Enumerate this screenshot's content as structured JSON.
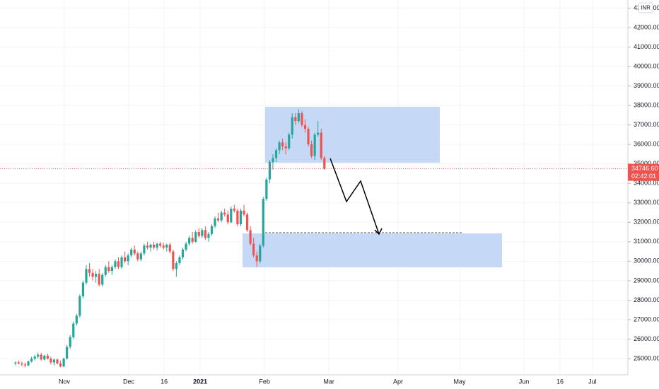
{
  "chart_data": {
    "type": "candlestick",
    "currency": "INR",
    "last_price_label": "34746.60",
    "countdown": "02:42:01",
    "up_color": "#26a69a",
    "down_color": "#ef5350",
    "grid": true,
    "xlim": [
      -4.8,
      190.3
    ],
    "ylim": [
      24165,
      43416
    ],
    "xticks": [
      {
        "value": 15.2,
        "label": "Nov"
      },
      {
        "value": 35.2,
        "label": "Dec"
      },
      {
        "value": 46.2,
        "label": "16"
      },
      {
        "value": 57.4,
        "label": "2021"
      },
      {
        "value": 77.4,
        "label": "Feb"
      },
      {
        "value": 97.4,
        "label": "Mar"
      },
      {
        "value": 118.9,
        "label": "Apr"
      },
      {
        "value": 138,
        "label": "May"
      },
      {
        "value": 158,
        "label": "Jun"
      },
      {
        "value": 169.2,
        "label": "16"
      },
      {
        "value": 179.3,
        "label": "Jul"
      }
    ],
    "yticks": [
      {
        "value": 25000,
        "label": "25000.00"
      },
      {
        "value": 26000,
        "label": "26000.00"
      },
      {
        "value": 27000,
        "label": "27000.00"
      },
      {
        "value": 28000,
        "label": "28000.00"
      },
      {
        "value": 29000,
        "label": "29000.00"
      },
      {
        "value": 30000,
        "label": "30000.00"
      },
      {
        "value": 31000,
        "label": "31000.00"
      },
      {
        "value": 32000,
        "label": "32000.00"
      },
      {
        "value": 33000,
        "label": "33000.00"
      },
      {
        "value": 34000,
        "label": "34000.00"
      },
      {
        "value": 35000,
        "label": "35000.00"
      },
      {
        "value": 36000,
        "label": "36000.00"
      },
      {
        "value": 37000,
        "label": "37000.00"
      },
      {
        "value": 38000,
        "label": "38000.00"
      },
      {
        "value": 39000,
        "label": "39000.00"
      },
      {
        "value": 40000,
        "label": "40000.00"
      },
      {
        "value": 41000,
        "label": "41000.00"
      },
      {
        "value": 42000,
        "label": "42000.00"
      },
      {
        "value": 43000,
        "label": "43000.00"
      }
    ],
    "ohlc": [
      [
        24750,
        24850,
        24650,
        24800
      ],
      [
        24800,
        24900,
        24700,
        24750
      ],
      [
        24750,
        24850,
        24600,
        24700
      ],
      [
        24700,
        24800,
        24550,
        24650
      ],
      [
        24650,
        24900,
        24600,
        24850
      ],
      [
        24850,
        25100,
        24800,
        25000
      ],
      [
        25000,
        25200,
        24900,
        25100
      ],
      [
        25100,
        25300,
        25000,
        25200
      ],
      [
        25200,
        25300,
        24900,
        24950
      ],
      [
        24950,
        25200,
        24900,
        25150
      ],
      [
        25150,
        25250,
        24950,
        25000
      ],
      [
        25000,
        25100,
        24700,
        24800
      ],
      [
        24800,
        25000,
        24650,
        24950
      ],
      [
        24950,
        25000,
        24700,
        24750
      ],
      [
        24750,
        24900,
        24550,
        24600
      ],
      [
        24600,
        25050,
        24550,
        25000
      ],
      [
        25000,
        25700,
        24950,
        25600
      ],
      [
        25600,
        26200,
        25500,
        26100
      ],
      [
        26100,
        26900,
        26000,
        26800
      ],
      [
        26800,
        27300,
        26700,
        27200
      ],
      [
        27200,
        28300,
        27100,
        28200
      ],
      [
        28200,
        29000,
        28100,
        28900
      ],
      [
        28900,
        29800,
        28800,
        29600
      ],
      [
        29600,
        29900,
        29200,
        29400
      ],
      [
        29400,
        29600,
        29000,
        29200
      ],
      [
        29200,
        29500,
        28900,
        29350
      ],
      [
        29350,
        29600,
        28700,
        28800
      ],
      [
        28800,
        29400,
        28700,
        29300
      ],
      [
        29300,
        29800,
        29200,
        29700
      ],
      [
        29700,
        30000,
        29400,
        29500
      ],
      [
        29500,
        29800,
        29300,
        29700
      ],
      [
        29700,
        30100,
        29600,
        30000
      ],
      [
        30000,
        30200,
        29600,
        29700
      ],
      [
        29700,
        30300,
        29600,
        30200
      ],
      [
        30200,
        30500,
        29900,
        30000
      ],
      [
        30000,
        30400,
        29800,
        30300
      ],
      [
        30300,
        30700,
        30200,
        30600
      ],
      [
        30600,
        30800,
        30300,
        30400
      ],
      [
        30400,
        30500,
        30000,
        30100
      ],
      [
        30100,
        30500,
        30000,
        30400
      ],
      [
        30400,
        30900,
        30300,
        30800
      ],
      [
        30800,
        31000,
        30600,
        30700
      ],
      [
        30700,
        30900,
        30500,
        30850
      ],
      [
        30850,
        31000,
        30600,
        30700
      ],
      [
        30700,
        30950,
        30550,
        30900
      ],
      [
        30900,
        31000,
        30700,
        30800
      ],
      [
        30800,
        30950,
        30600,
        30700
      ],
      [
        30700,
        30900,
        30500,
        30850
      ],
      [
        30850,
        30950,
        30400,
        30500
      ],
      [
        30500,
        30600,
        29500,
        29600
      ],
      [
        29600,
        30000,
        29200,
        29900
      ],
      [
        29900,
        30300,
        29800,
        30200
      ],
      [
        30200,
        30700,
        30100,
        30600
      ],
      [
        30600,
        31000,
        30500,
        30900
      ],
      [
        30900,
        31300,
        30800,
        31200
      ],
      [
        31200,
        31500,
        30900,
        31000
      ],
      [
        31000,
        31600,
        30950,
        31500
      ],
      [
        31500,
        31700,
        31200,
        31300
      ],
      [
        31300,
        31700,
        31200,
        31600
      ],
      [
        31600,
        31800,
        31100,
        31200
      ],
      [
        31200,
        31500,
        31000,
        31400
      ],
      [
        31400,
        31900,
        31300,
        31800
      ],
      [
        31800,
        32300,
        31700,
        32200
      ],
      [
        32200,
        32500,
        32000,
        32100
      ],
      [
        32100,
        32600,
        32000,
        32500
      ],
      [
        32500,
        32700,
        32300,
        32400
      ],
      [
        32400,
        32600,
        31900,
        32000
      ],
      [
        32000,
        32800,
        31950,
        32700
      ],
      [
        32700,
        32900,
        32500,
        32600
      ],
      [
        32600,
        32700,
        31800,
        31900
      ],
      [
        31900,
        32700,
        31800,
        32600
      ],
      [
        32600,
        32900,
        32300,
        32400
      ],
      [
        32400,
        32500,
        31500,
        31600
      ],
      [
        31600,
        31800,
        30800,
        30900
      ],
      [
        30900,
        31200,
        30200,
        30300
      ],
      [
        30300,
        30500,
        29700,
        30000
      ],
      [
        30000,
        30900,
        29900,
        30800
      ],
      [
        30800,
        33300,
        30700,
        33200
      ],
      [
        33200,
        34300,
        33100,
        34200
      ],
      [
        34200,
        35200,
        34000,
        35100
      ],
      [
        35100,
        35500,
        34700,
        35300
      ],
      [
        35300,
        35800,
        35100,
        35700
      ],
      [
        35700,
        36200,
        35500,
        36100
      ],
      [
        36100,
        36300,
        35700,
        35900
      ],
      [
        35900,
        36100,
        35500,
        35800
      ],
      [
        35800,
        36600,
        35700,
        36500
      ],
      [
        36500,
        37600,
        36300,
        37400
      ],
      [
        37400,
        37600,
        37000,
        37200
      ],
      [
        37200,
        37800,
        37100,
        37600
      ],
      [
        37600,
        37700,
        36900,
        37000
      ],
      [
        37000,
        37300,
        36600,
        36800
      ],
      [
        36800,
        36900,
        35900,
        36000
      ],
      [
        36000,
        36200,
        35300,
        35400
      ],
      [
        35400,
        36600,
        35200,
        36500
      ],
      [
        36500,
        37200,
        36400,
        36600
      ],
      [
        36600,
        36800,
        35200,
        35300
      ],
      [
        35300,
        35400,
        34700,
        34746.6
      ]
    ]
  }
}
